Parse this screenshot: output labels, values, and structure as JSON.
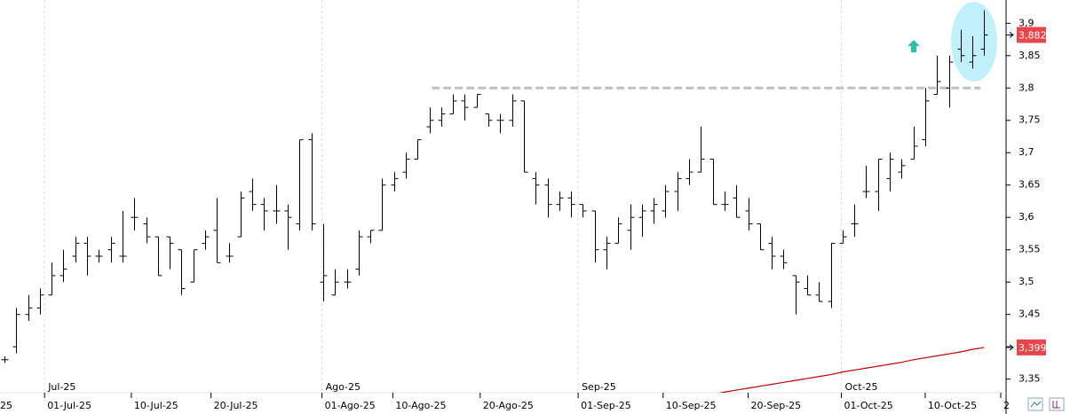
{
  "chart_data": {
    "type": "ohlc",
    "ohlc": [
      [
        3.38,
        3.385,
        3.375,
        3.38
      ],
      [
        3.4,
        3.46,
        3.39,
        3.45
      ],
      [
        3.45,
        3.48,
        3.44,
        3.46
      ],
      [
        3.46,
        3.49,
        3.45,
        3.48
      ],
      [
        3.48,
        3.53,
        3.48,
        3.51
      ],
      [
        3.51,
        3.55,
        3.5,
        3.52
      ],
      [
        3.54,
        3.57,
        3.53,
        3.56
      ],
      [
        3.56,
        3.57,
        3.51,
        3.54
      ],
      [
        3.54,
        3.55,
        3.53,
        3.54
      ],
      [
        3.55,
        3.57,
        3.53,
        3.56
      ],
      [
        3.54,
        3.61,
        3.53,
        3.54
      ],
      [
        3.6,
        3.63,
        3.58,
        3.6
      ],
      [
        3.59,
        3.6,
        3.56,
        3.57
      ],
      [
        3.57,
        3.57,
        3.51,
        3.51
      ],
      [
        3.57,
        3.57,
        3.52,
        3.56
      ],
      [
        3.55,
        3.55,
        3.48,
        3.49
      ],
      [
        3.5,
        3.55,
        3.5,
        3.55
      ],
      [
        3.56,
        3.58,
        3.55,
        3.57
      ],
      [
        3.58,
        3.63,
        3.53,
        3.53
      ],
      [
        3.54,
        3.56,
        3.53,
        3.54
      ],
      [
        3.57,
        3.64,
        3.57,
        3.63
      ],
      [
        3.64,
        3.66,
        3.61,
        3.62
      ],
      [
        3.62,
        3.63,
        3.58,
        3.61
      ],
      [
        3.61,
        3.65,
        3.59,
        3.61
      ],
      [
        3.61,
        3.62,
        3.55,
        3.6
      ],
      [
        3.59,
        3.72,
        3.58,
        3.72
      ],
      [
        3.72,
        3.73,
        3.58,
        3.59
      ],
      [
        3.5,
        3.59,
        3.47,
        3.51
      ],
      [
        3.48,
        3.52,
        3.48,
        3.5
      ],
      [
        3.5,
        3.52,
        3.49,
        3.5
      ],
      [
        3.52,
        3.58,
        3.51,
        3.57
      ],
      [
        3.57,
        3.58,
        3.56,
        3.58
      ],
      [
        3.58,
        3.66,
        3.58,
        3.65
      ],
      [
        3.65,
        3.67,
        3.64,
        3.66
      ],
      [
        3.67,
        3.7,
        3.66,
        3.69
      ],
      [
        3.69,
        3.72,
        3.69,
        3.72
      ],
      [
        3.74,
        3.77,
        3.73,
        3.75
      ],
      [
        3.75,
        3.77,
        3.74,
        3.76
      ],
      [
        3.76,
        3.79,
        3.76,
        3.78
      ],
      [
        3.78,
        3.79,
        3.75,
        3.77
      ],
      [
        3.77,
        3.79,
        3.77,
        3.79
      ],
      [
        3.76,
        3.76,
        3.74,
        3.75
      ],
      [
        3.75,
        3.76,
        3.73,
        3.75
      ],
      [
        3.75,
        3.79,
        3.74,
        3.78
      ],
      [
        3.78,
        3.78,
        3.67,
        3.67
      ],
      [
        3.66,
        3.67,
        3.62,
        3.65
      ],
      [
        3.65,
        3.66,
        3.6,
        3.62
      ],
      [
        3.62,
        3.64,
        3.61,
        3.63
      ],
      [
        3.63,
        3.64,
        3.6,
        3.62
      ],
      [
        3.62,
        3.62,
        3.6,
        3.61
      ],
      [
        3.61,
        3.61,
        3.53,
        3.55
      ],
      [
        3.55,
        3.57,
        3.52,
        3.56
      ],
      [
        3.56,
        3.6,
        3.56,
        3.59
      ],
      [
        3.58,
        3.62,
        3.55,
        3.6
      ],
      [
        3.6,
        3.62,
        3.57,
        3.61
      ],
      [
        3.61,
        3.63,
        3.59,
        3.62
      ],
      [
        3.61,
        3.65,
        3.6,
        3.64
      ],
      [
        3.64,
        3.67,
        3.61,
        3.66
      ],
      [
        3.66,
        3.69,
        3.65,
        3.67
      ],
      [
        3.67,
        3.74,
        3.67,
        3.69
      ],
      [
        3.69,
        3.69,
        3.62,
        3.62
      ],
      [
        3.62,
        3.64,
        3.61,
        3.62
      ],
      [
        3.63,
        3.65,
        3.6,
        3.6
      ],
      [
        3.61,
        3.63,
        3.58,
        3.59
      ],
      [
        3.59,
        3.59,
        3.55,
        3.55
      ],
      [
        3.56,
        3.57,
        3.52,
        3.54
      ],
      [
        3.54,
        3.55,
        3.52,
        3.53
      ],
      [
        3.51,
        3.51,
        3.45,
        3.5
      ],
      [
        3.49,
        3.51,
        3.48,
        3.48
      ],
      [
        3.48,
        3.5,
        3.47,
        3.47
      ],
      [
        3.47,
        3.56,
        3.46,
        3.56
      ],
      [
        3.56,
        3.58,
        3.56,
        3.57
      ],
      [
        3.59,
        3.62,
        3.57,
        3.59
      ],
      [
        3.64,
        3.68,
        3.63,
        3.64
      ],
      [
        3.64,
        3.69,
        3.61,
        3.69
      ],
      [
        3.66,
        3.7,
        3.64,
        3.69
      ],
      [
        3.67,
        3.69,
        3.66,
        3.68
      ],
      [
        3.69,
        3.74,
        3.69,
        3.71
      ],
      [
        3.72,
        3.8,
        3.71,
        3.78
      ],
      [
        3.79,
        3.85,
        3.79,
        3.81
      ],
      [
        3.8,
        3.85,
        3.77,
        3.84
      ],
      [
        3.86,
        3.89,
        3.84,
        3.85
      ],
      [
        3.84,
        3.88,
        3.83,
        3.85
      ],
      [
        3.86,
        3.92,
        3.85,
        3.882
      ]
    ],
    "color": "#000000",
    "moving_average": {
      "color": "#c00000",
      "values": [
        null,
        null,
        null,
        null,
        null,
        null,
        null,
        null,
        null,
        null,
        null,
        null,
        null,
        null,
        null,
        null,
        null,
        null,
        null,
        null,
        null,
        null,
        null,
        null,
        null,
        null,
        null,
        null,
        null,
        null,
        null,
        null,
        null,
        null,
        null,
        null,
        null,
        null,
        null,
        null,
        null,
        null,
        null,
        null,
        null,
        null,
        null,
        null,
        null,
        null,
        null,
        null,
        null,
        null,
        null,
        null,
        null,
        null,
        3.32,
        3.323,
        3.326,
        3.33,
        3.333,
        3.336,
        3.339,
        3.342,
        3.345,
        3.348,
        3.351,
        3.354,
        3.357,
        3.361,
        3.364,
        3.367,
        3.37,
        3.373,
        3.376,
        3.38,
        3.383,
        3.386,
        3.389,
        3.392,
        3.396,
        3.399
      ]
    },
    "last_price": {
      "value": 3.882,
      "label": "3,882",
      "color": "#e8464a"
    },
    "ma_last": {
      "value": 3.399,
      "label": "3,399",
      "color": "#e8464a"
    },
    "resistance": {
      "value": 3.8,
      "from": 36.2,
      "to": 82.7,
      "color": "#c0c0c0"
    },
    "ylim": [
      3.329,
      3.936
    ],
    "yticks": [
      {
        "value": 3.35,
        "label": "3,35"
      },
      {
        "value": 3.4,
        "label": "3,4"
      },
      {
        "value": 3.45,
        "label": "3,45"
      },
      {
        "value": 3.5,
        "label": "3,5"
      },
      {
        "value": 3.55,
        "label": "3,55"
      },
      {
        "value": 3.6,
        "label": "3,6"
      },
      {
        "value": 3.65,
        "label": "3,65"
      },
      {
        "value": 3.7,
        "label": "3,7"
      },
      {
        "value": 3.75,
        "label": "3,75"
      },
      {
        "value": 3.8,
        "label": "3,8"
      },
      {
        "value": 3.85,
        "label": "3,85"
      },
      {
        "value": 3.9,
        "label": "3,9"
      }
    ],
    "xlim": [
      -0.376,
      84.85
    ],
    "xticks": [
      {
        "value": -0.6,
        "label": "25"
      },
      {
        "value": 3.4,
        "label": "01-Jul-25"
      },
      {
        "value": 10.75,
        "label": "10-Jul-25"
      },
      {
        "value": 17.5,
        "label": "20-Jul-25"
      },
      {
        "value": 26.9,
        "label": "01-Ago-25"
      },
      {
        "value": 32.9,
        "label": "10-Ago-25"
      },
      {
        "value": 40.3,
        "label": "20-Ago-25"
      },
      {
        "value": 48.6,
        "label": "01-Sep-25"
      },
      {
        "value": 55.8,
        "label": "10-Sep-25"
      },
      {
        "value": 63.0,
        "label": "20-Sep-25"
      },
      {
        "value": 70.9,
        "label": "01-Oct-25"
      },
      {
        "value": 78.0,
        "label": "10-Oct-25"
      },
      {
        "value": 84.4,
        "label": "2"
      }
    ],
    "month_ticks": [
      {
        "value": 3.4,
        "label": "Jul-25"
      },
      {
        "value": 26.9,
        "label": "Ago-25"
      },
      {
        "value": 48.6,
        "label": "Sep-25"
      },
      {
        "value": 70.9,
        "label": "Oct-25"
      }
    ]
  }
}
